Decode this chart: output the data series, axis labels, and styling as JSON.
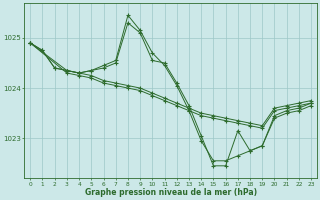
{
  "background_color": "#cce8e8",
  "line_color": "#2d6b2d",
  "grid_color": "#9dc8c8",
  "xlabel": "Graphe pression niveau de la mer (hPa)",
  "xlim": [
    -0.5,
    23.5
  ],
  "ylim": [
    1022.2,
    1025.7
  ],
  "yticks": [
    1023,
    1024,
    1025
  ],
  "xticks": [
    0,
    1,
    2,
    3,
    4,
    5,
    6,
    7,
    8,
    9,
    10,
    11,
    12,
    13,
    14,
    15,
    16,
    17,
    18,
    19,
    20,
    21,
    22,
    23
  ],
  "series": [
    {
      "x": [
        0,
        3,
        4,
        5,
        6,
        7,
        8,
        9,
        10,
        11,
        12,
        13,
        14,
        15,
        16,
        17,
        18,
        19,
        20,
        21,
        22,
        23
      ],
      "y": [
        1024.9,
        1024.3,
        1024.25,
        1024.2,
        1024.1,
        1024.05,
        1024.0,
        1023.95,
        1023.85,
        1023.75,
        1023.65,
        1023.55,
        1023.45,
        1023.4,
        1023.35,
        1023.3,
        1023.25,
        1023.2,
        1023.55,
        1023.6,
        1023.65,
        1023.7
      ]
    },
    {
      "x": [
        0,
        3,
        4,
        5,
        6,
        7,
        8,
        9,
        10,
        11,
        12,
        13,
        14,
        15,
        16,
        17,
        18,
        19,
        20,
        21,
        22,
        23
      ],
      "y": [
        1024.9,
        1024.35,
        1024.3,
        1024.25,
        1024.15,
        1024.1,
        1024.05,
        1024.0,
        1023.9,
        1023.8,
        1023.7,
        1023.6,
        1023.5,
        1023.45,
        1023.4,
        1023.35,
        1023.3,
        1023.25,
        1023.6,
        1023.65,
        1023.7,
        1023.75
      ]
    },
    {
      "x": [
        0,
        1,
        2,
        3,
        4,
        5,
        6,
        7,
        8,
        9,
        10,
        11,
        12,
        13,
        14,
        15,
        16,
        17,
        18,
        19,
        20,
        21,
        22,
        23
      ],
      "y": [
        1024.9,
        1024.75,
        1024.4,
        1024.35,
        1024.3,
        1024.35,
        1024.45,
        1024.55,
        1025.45,
        1025.15,
        1024.7,
        1024.45,
        1024.05,
        1023.55,
        1022.95,
        1022.55,
        1022.55,
        1022.65,
        1022.75,
        1022.85,
        1023.45,
        1023.55,
        1023.6,
        1023.7
      ]
    },
    {
      "x": [
        0,
        1,
        2,
        3,
        4,
        5,
        6,
        7,
        8,
        9,
        10,
        11,
        12,
        13,
        14,
        15,
        16,
        17,
        18,
        19,
        20,
        21,
        22,
        23
      ],
      "y": [
        1024.9,
        1024.75,
        1024.4,
        1024.35,
        1024.3,
        1024.35,
        1024.4,
        1024.5,
        1025.3,
        1025.1,
        1024.55,
        1024.5,
        1024.1,
        1023.65,
        1023.05,
        1022.45,
        1022.45,
        1023.15,
        1022.75,
        1022.85,
        1023.4,
        1023.5,
        1023.55,
        1023.65
      ]
    }
  ]
}
